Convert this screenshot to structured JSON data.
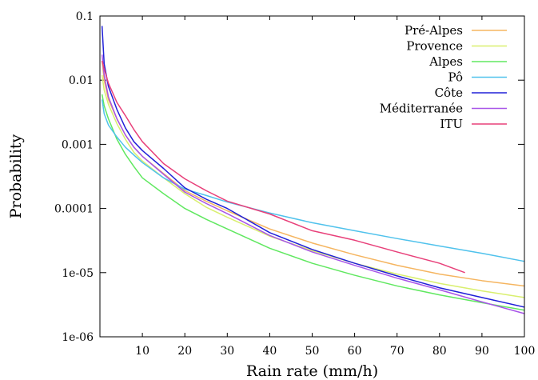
{
  "chart_data": {
    "type": "line",
    "xlabel": "Rain rate (mm/h)",
    "ylabel": "Probability",
    "xlim": [
      0,
      100
    ],
    "ylim": [
      1e-06,
      0.1
    ],
    "yscale": "log",
    "grid": false,
    "legend_position": "top-right",
    "x_ticks": [
      10,
      20,
      30,
      40,
      50,
      60,
      70,
      80,
      90,
      100
    ],
    "y_ticks": [
      {
        "value": 0.1,
        "label": "0.1"
      },
      {
        "value": 0.01,
        "label": "0.01"
      },
      {
        "value": 0.001,
        "label": "0.001"
      },
      {
        "value": 0.0001,
        "label": "0.0001"
      },
      {
        "value": 1e-05,
        "label": "1e-05"
      },
      {
        "value": 1e-06,
        "label": "1e-06"
      }
    ],
    "series": [
      {
        "name": "Pré-Alpes",
        "color": "#f5b560",
        "points": [
          [
            0.5,
            0.02
          ],
          [
            1,
            0.01
          ],
          [
            2,
            0.005
          ],
          [
            4,
            0.0025
          ],
          [
            6,
            0.0014
          ],
          [
            8,
            0.0009
          ],
          [
            10,
            0.00065
          ],
          [
            15,
            0.00035
          ],
          [
            20,
            0.00019
          ],
          [
            25,
            0.00013
          ],
          [
            30,
            9.2e-05
          ],
          [
            40,
            4.8e-05
          ],
          [
            50,
            2.9e-05
          ],
          [
            60,
            1.9e-05
          ],
          [
            70,
            1.3e-05
          ],
          [
            80,
            9.5e-06
          ],
          [
            90,
            7.5e-06
          ],
          [
            100,
            6.2e-06
          ]
        ]
      },
      {
        "name": "Provence",
        "color": "#d9ef6e",
        "points": [
          [
            0.5,
            0.012
          ],
          [
            1,
            0.007
          ],
          [
            2,
            0.0042
          ],
          [
            4,
            0.0021
          ],
          [
            6,
            0.0012
          ],
          [
            8,
            0.00075
          ],
          [
            10,
            0.00055
          ],
          [
            15,
            0.0003
          ],
          [
            20,
            0.00017
          ],
          [
            25,
            0.000105
          ],
          [
            30,
            7.3e-05
          ],
          [
            40,
            3.7e-05
          ],
          [
            50,
            2.2e-05
          ],
          [
            60,
            1.4e-05
          ],
          [
            70,
            9.5e-06
          ],
          [
            80,
            6.8e-06
          ],
          [
            90,
            5.2e-06
          ],
          [
            100,
            4.1e-06
          ]
        ]
      },
      {
        "name": "Alpes",
        "color": "#60e860",
        "points": [
          [
            0.5,
            0.006
          ],
          [
            1,
            0.004
          ],
          [
            2,
            0.0025
          ],
          [
            4,
            0.0012
          ],
          [
            6,
            0.0007
          ],
          [
            8,
            0.00045
          ],
          [
            10,
            0.0003
          ],
          [
            15,
            0.00017
          ],
          [
            20,
            0.0001
          ],
          [
            25,
            6.8e-05
          ],
          [
            30,
            4.8e-05
          ],
          [
            40,
            2.4e-05
          ],
          [
            50,
            1.4e-05
          ],
          [
            60,
            9.1e-06
          ],
          [
            70,
            6.2e-06
          ],
          [
            80,
            4.5e-06
          ],
          [
            90,
            3.4e-06
          ],
          [
            100,
            2.6e-06
          ]
        ]
      },
      {
        "name": "Pô",
        "color": "#50c2ec",
        "points": [
          [
            0.5,
            0.005
          ],
          [
            1,
            0.003
          ],
          [
            2,
            0.002
          ],
          [
            4,
            0.0013
          ],
          [
            6,
            0.0009
          ],
          [
            8,
            0.00068
          ],
          [
            10,
            0.00052
          ],
          [
            15,
            0.0003
          ],
          [
            20,
            0.0002
          ],
          [
            25,
            0.00016
          ],
          [
            30,
            0.000126
          ],
          [
            40,
            8.5e-05
          ],
          [
            50,
            6e-05
          ],
          [
            60,
            4.5e-05
          ],
          [
            70,
            3.4e-05
          ],
          [
            80,
            2.6e-05
          ],
          [
            90,
            2e-05
          ],
          [
            100,
            1.5e-05
          ]
        ]
      },
      {
        "name": "Côte",
        "color": "#2020d8",
        "points": [
          [
            0.5,
            0.07
          ],
          [
            1,
            0.018
          ],
          [
            2,
            0.008
          ],
          [
            4,
            0.0035
          ],
          [
            6,
            0.0018
          ],
          [
            8,
            0.0011
          ],
          [
            10,
            0.0008
          ],
          [
            15,
            0.00042
          ],
          [
            20,
            0.00021
          ],
          [
            25,
            0.00014
          ],
          [
            30,
            0.0001
          ],
          [
            40,
            4.2e-05
          ],
          [
            50,
            2.3e-05
          ],
          [
            60,
            1.4e-05
          ],
          [
            70,
            8.9e-06
          ],
          [
            80,
            5.8e-06
          ],
          [
            90,
            4.1e-06
          ],
          [
            100,
            2.9e-06
          ]
        ]
      },
      {
        "name": "Méditerranée",
        "color": "#a855e8",
        "points": [
          [
            0.5,
            0.025
          ],
          [
            1,
            0.012
          ],
          [
            2,
            0.0055
          ],
          [
            4,
            0.0025
          ],
          [
            6,
            0.0014
          ],
          [
            8,
            0.0009
          ],
          [
            10,
            0.00065
          ],
          [
            15,
            0.00034
          ],
          [
            20,
            0.00018
          ],
          [
            25,
            0.00012
          ],
          [
            30,
            8.3e-05
          ],
          [
            40,
            3.8e-05
          ],
          [
            50,
            2.1e-05
          ],
          [
            60,
            1.3e-05
          ],
          [
            70,
            8.2e-06
          ],
          [
            80,
            5.4e-06
          ],
          [
            90,
            3.5e-06
          ],
          [
            100,
            2.3e-06
          ]
        ]
      },
      {
        "name": "ITU",
        "color": "#e8407a",
        "points": [
          [
            0.5,
            0.02
          ],
          [
            1,
            0.015
          ],
          [
            2,
            0.009
          ],
          [
            4,
            0.0045
          ],
          [
            6,
            0.0028
          ],
          [
            8,
            0.0017
          ],
          [
            10,
            0.0011
          ],
          [
            15,
            0.0005
          ],
          [
            20,
            0.00029
          ],
          [
            25,
            0.00019
          ],
          [
            30,
            0.00013
          ],
          [
            40,
            8.2e-05
          ],
          [
            50,
            4.5e-05
          ],
          [
            60,
            3.2e-05
          ],
          [
            70,
            2.1e-05
          ],
          [
            80,
            1.4e-05
          ],
          [
            86,
            1e-05
          ]
        ]
      }
    ]
  }
}
